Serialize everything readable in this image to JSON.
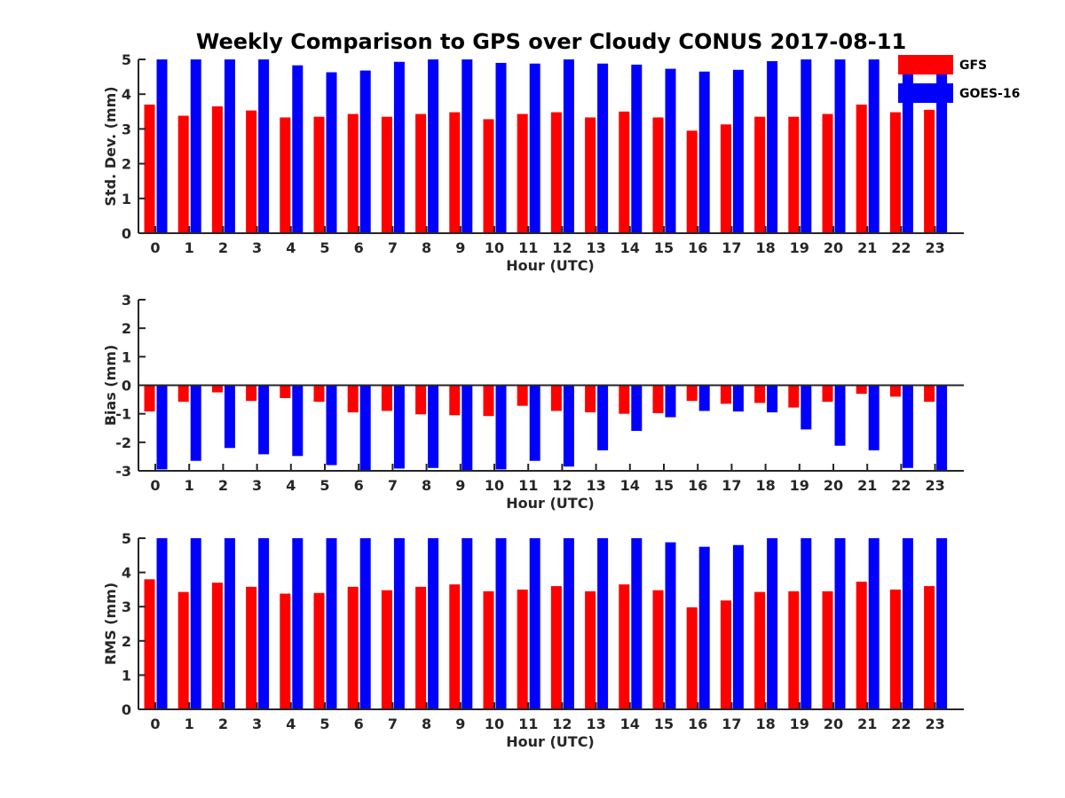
{
  "title": "Weekly Comparison to GPS over Cloudy CONUS 2017-08-11",
  "colors": {
    "GFS": "#ff0000",
    "GOES-16": "#0000ff"
  },
  "legend": {
    "placement": "top-right",
    "entries": [
      "GFS",
      "GOES-16"
    ]
  },
  "chart_data": [
    {
      "type": "bar",
      "categories": [
        "0",
        "1",
        "2",
        "3",
        "4",
        "5",
        "6",
        "7",
        "8",
        "9",
        "10",
        "11",
        "12",
        "13",
        "14",
        "15",
        "16",
        "17",
        "18",
        "19",
        "20",
        "21",
        "22",
        "23"
      ],
      "xlabel": "Hour (UTC)",
      "ylabel": "Std. Dev. (mm)",
      "ylim": [
        0,
        5
      ],
      "yticks": [
        "0",
        "1",
        "2",
        "3",
        "4",
        "5"
      ],
      "series": [
        {
          "name": "GFS",
          "values": [
            3.7,
            3.38,
            3.65,
            3.53,
            3.33,
            3.35,
            3.43,
            3.35,
            3.43,
            3.48,
            3.28,
            3.43,
            3.48,
            3.33,
            3.5,
            3.33,
            2.95,
            3.13,
            3.35,
            3.35,
            3.43,
            3.7,
            3.48,
            3.55
          ]
        },
        {
          "name": "GOES-16",
          "values": [
            5.0,
            5.0,
            5.0,
            5.0,
            4.83,
            4.63,
            4.68,
            4.93,
            5.0,
            5.0,
            4.9,
            4.88,
            5.0,
            4.88,
            4.85,
            4.73,
            4.65,
            4.7,
            4.95,
            5.0,
            5.0,
            5.0,
            5.0,
            5.0
          ]
        }
      ]
    },
    {
      "type": "bar",
      "categories": [
        "0",
        "1",
        "2",
        "3",
        "4",
        "5",
        "6",
        "7",
        "8",
        "9",
        "10",
        "11",
        "12",
        "13",
        "14",
        "15",
        "16",
        "17",
        "18",
        "19",
        "20",
        "21",
        "22",
        "23"
      ],
      "xlabel": "Hour (UTC)",
      "ylabel": "Bias (mm)",
      "ylim": [
        -3,
        3
      ],
      "yticks": [
        "-3",
        "-2",
        "-1",
        "0",
        "1",
        "2",
        "3"
      ],
      "series": [
        {
          "name": "GFS",
          "values": [
            -0.92,
            -0.58,
            -0.25,
            -0.55,
            -0.45,
            -0.58,
            -0.95,
            -0.9,
            -1.02,
            -1.05,
            -1.08,
            -0.72,
            -0.9,
            -0.95,
            -1.0,
            -0.98,
            -0.55,
            -0.65,
            -0.62,
            -0.78,
            -0.58,
            -0.3,
            -0.4,
            -0.58
          ]
        },
        {
          "name": "GOES-16",
          "values": [
            -2.95,
            -2.65,
            -2.2,
            -2.42,
            -2.48,
            -2.8,
            -3.0,
            -2.92,
            -2.9,
            -3.0,
            -2.95,
            -2.65,
            -2.85,
            -2.28,
            -1.6,
            -1.12,
            -0.9,
            -0.92,
            -0.95,
            -1.55,
            -2.12,
            -2.28,
            -2.9,
            -3.0
          ]
        }
      ]
    },
    {
      "type": "bar",
      "categories": [
        "0",
        "1",
        "2",
        "3",
        "4",
        "5",
        "6",
        "7",
        "8",
        "9",
        "10",
        "11",
        "12",
        "13",
        "14",
        "15",
        "16",
        "17",
        "18",
        "19",
        "20",
        "21",
        "22",
        "23"
      ],
      "xlabel": "Hour (UTC)",
      "ylabel": "RMS (mm)",
      "ylim": [
        0,
        5
      ],
      "yticks": [
        "0",
        "1",
        "2",
        "3",
        "4",
        "5"
      ],
      "series": [
        {
          "name": "GFS",
          "values": [
            3.8,
            3.43,
            3.7,
            3.58,
            3.38,
            3.4,
            3.58,
            3.48,
            3.58,
            3.65,
            3.45,
            3.5,
            3.6,
            3.45,
            3.65,
            3.48,
            2.98,
            3.18,
            3.43,
            3.45,
            3.45,
            3.73,
            3.5,
            3.6
          ]
        },
        {
          "name": "GOES-16",
          "values": [
            5.0,
            5.0,
            5.0,
            5.0,
            5.0,
            5.0,
            5.0,
            5.0,
            5.0,
            5.0,
            5.0,
            5.0,
            5.0,
            5.0,
            5.0,
            4.88,
            4.75,
            4.8,
            5.0,
            5.0,
            5.0,
            5.0,
            5.0,
            5.0
          ]
        }
      ]
    }
  ]
}
